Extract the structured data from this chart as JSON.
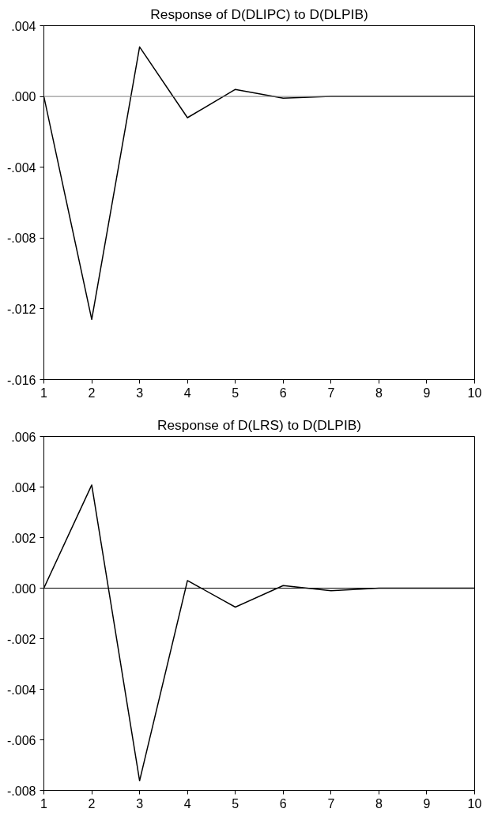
{
  "chart_data": [
    {
      "type": "line",
      "title": "Response of D(DLIPC) to D(DLPIB)",
      "x": [
        1,
        2,
        3,
        4,
        5,
        6,
        7,
        8,
        9,
        10
      ],
      "series": [
        {
          "color": "#000000",
          "values": [
            0,
            -0.0126,
            0.0028,
            -0.0012,
            0.0004,
            -0.0001,
            0,
            0,
            0,
            0
          ]
        }
      ],
      "xlim": [
        1,
        10
      ],
      "xticks": [
        1,
        2,
        3,
        4,
        5,
        6,
        7,
        8,
        9,
        10
      ],
      "ylim": [
        -0.016,
        0.004
      ],
      "yticks": [
        {
          "value": -0.016,
          "label": "-.016"
        },
        {
          "value": -0.012,
          "label": "-.012"
        },
        {
          "value": -0.008,
          "label": "-.008"
        },
        {
          "value": -0.004,
          "label": "-.004"
        },
        {
          "value": 0,
          "label": ".000"
        },
        {
          "value": 0.004,
          "label": ".004"
        }
      ],
      "ref_lines": [
        {
          "axis": "y",
          "value": 0,
          "color": "#808080"
        }
      ],
      "grid": false
    },
    {
      "type": "line",
      "title": "Response of D(LRS) to D(DLPIB)",
      "x": [
        1,
        2,
        3,
        4,
        5,
        6,
        7,
        8,
        9,
        10
      ],
      "series": [
        {
          "color": "#000000",
          "values": [
            0,
            0.00408,
            -0.00762,
            0.0003,
            -0.00075,
            0.0001,
            -0.0001,
            0,
            0,
            0
          ]
        }
      ],
      "xlim": [
        1,
        10
      ],
      "xticks": [
        1,
        2,
        3,
        4,
        5,
        6,
        7,
        8,
        9,
        10
      ],
      "ylim": [
        -0.008,
        0.006
      ],
      "yticks": [
        {
          "value": -0.008,
          "label": "-.008"
        },
        {
          "value": -0.006,
          "label": "-.006"
        },
        {
          "value": -0.004,
          "label": "-.004"
        },
        {
          "value": -0.002,
          "label": "-.002"
        },
        {
          "value": 0,
          "label": ".000"
        },
        {
          "value": 0.002,
          "label": ".002"
        },
        {
          "value": 0.004,
          "label": ".004"
        },
        {
          "value": 0.006,
          "label": ".006"
        }
      ],
      "ref_lines": [
        {
          "axis": "y",
          "value": 0,
          "color": "#000000"
        }
      ],
      "grid": false
    }
  ]
}
